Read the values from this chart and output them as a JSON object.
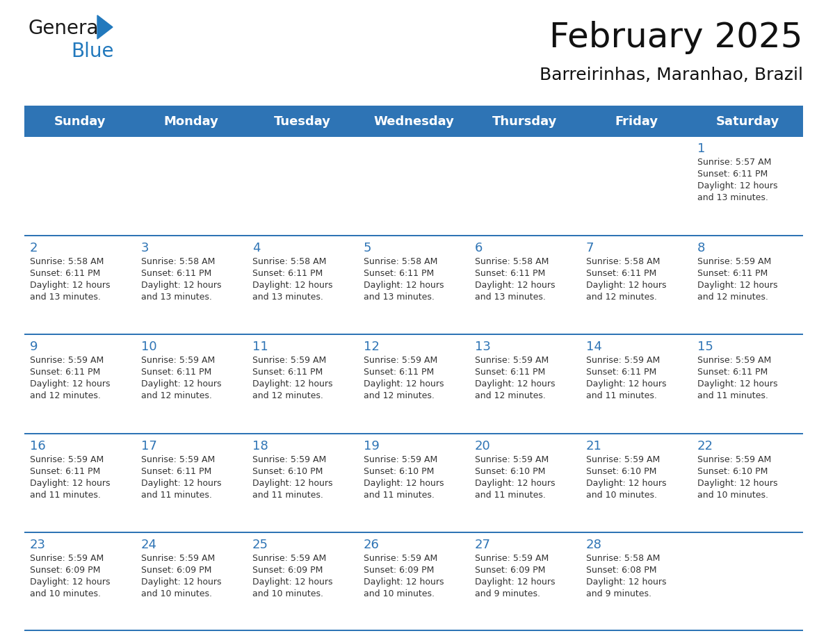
{
  "title": "February 2025",
  "subtitle": "Barreirinhas, Maranhao, Brazil",
  "header_bg_color": "#2E74B5",
  "header_text_color": "#FFFFFF",
  "cell_bg_color": "#FFFFFF",
  "row1_bg_color": "#F2F2F2",
  "divider_color": "#2E74B5",
  "day_num_color": "#2E74B5",
  "cell_text_color": "#333333",
  "days_of_week": [
    "Sunday",
    "Monday",
    "Tuesday",
    "Wednesday",
    "Thursday",
    "Friday",
    "Saturday"
  ],
  "weeks": [
    [
      {
        "day": "",
        "sunrise": "",
        "sunset": "",
        "daylight": ""
      },
      {
        "day": "",
        "sunrise": "",
        "sunset": "",
        "daylight": ""
      },
      {
        "day": "",
        "sunrise": "",
        "sunset": "",
        "daylight": ""
      },
      {
        "day": "",
        "sunrise": "",
        "sunset": "",
        "daylight": ""
      },
      {
        "day": "",
        "sunrise": "",
        "sunset": "",
        "daylight": ""
      },
      {
        "day": "",
        "sunrise": "",
        "sunset": "",
        "daylight": ""
      },
      {
        "day": "1",
        "sunrise": "5:57 AM",
        "sunset": "6:11 PM",
        "daylight": "12 hours\nand 13 minutes."
      }
    ],
    [
      {
        "day": "2",
        "sunrise": "5:58 AM",
        "sunset": "6:11 PM",
        "daylight": "12 hours\nand 13 minutes."
      },
      {
        "day": "3",
        "sunrise": "5:58 AM",
        "sunset": "6:11 PM",
        "daylight": "12 hours\nand 13 minutes."
      },
      {
        "day": "4",
        "sunrise": "5:58 AM",
        "sunset": "6:11 PM",
        "daylight": "12 hours\nand 13 minutes."
      },
      {
        "day": "5",
        "sunrise": "5:58 AM",
        "sunset": "6:11 PM",
        "daylight": "12 hours\nand 13 minutes."
      },
      {
        "day": "6",
        "sunrise": "5:58 AM",
        "sunset": "6:11 PM",
        "daylight": "12 hours\nand 13 minutes."
      },
      {
        "day": "7",
        "sunrise": "5:58 AM",
        "sunset": "6:11 PM",
        "daylight": "12 hours\nand 12 minutes."
      },
      {
        "day": "8",
        "sunrise": "5:59 AM",
        "sunset": "6:11 PM",
        "daylight": "12 hours\nand 12 minutes."
      }
    ],
    [
      {
        "day": "9",
        "sunrise": "5:59 AM",
        "sunset": "6:11 PM",
        "daylight": "12 hours\nand 12 minutes."
      },
      {
        "day": "10",
        "sunrise": "5:59 AM",
        "sunset": "6:11 PM",
        "daylight": "12 hours\nand 12 minutes."
      },
      {
        "day": "11",
        "sunrise": "5:59 AM",
        "sunset": "6:11 PM",
        "daylight": "12 hours\nand 12 minutes."
      },
      {
        "day": "12",
        "sunrise": "5:59 AM",
        "sunset": "6:11 PM",
        "daylight": "12 hours\nand 12 minutes."
      },
      {
        "day": "13",
        "sunrise": "5:59 AM",
        "sunset": "6:11 PM",
        "daylight": "12 hours\nand 12 minutes."
      },
      {
        "day": "14",
        "sunrise": "5:59 AM",
        "sunset": "6:11 PM",
        "daylight": "12 hours\nand 11 minutes."
      },
      {
        "day": "15",
        "sunrise": "5:59 AM",
        "sunset": "6:11 PM",
        "daylight": "12 hours\nand 11 minutes."
      }
    ],
    [
      {
        "day": "16",
        "sunrise": "5:59 AM",
        "sunset": "6:11 PM",
        "daylight": "12 hours\nand 11 minutes."
      },
      {
        "day": "17",
        "sunrise": "5:59 AM",
        "sunset": "6:11 PM",
        "daylight": "12 hours\nand 11 minutes."
      },
      {
        "day": "18",
        "sunrise": "5:59 AM",
        "sunset": "6:10 PM",
        "daylight": "12 hours\nand 11 minutes."
      },
      {
        "day": "19",
        "sunrise": "5:59 AM",
        "sunset": "6:10 PM",
        "daylight": "12 hours\nand 11 minutes."
      },
      {
        "day": "20",
        "sunrise": "5:59 AM",
        "sunset": "6:10 PM",
        "daylight": "12 hours\nand 11 minutes."
      },
      {
        "day": "21",
        "sunrise": "5:59 AM",
        "sunset": "6:10 PM",
        "daylight": "12 hours\nand 10 minutes."
      },
      {
        "day": "22",
        "sunrise": "5:59 AM",
        "sunset": "6:10 PM",
        "daylight": "12 hours\nand 10 minutes."
      }
    ],
    [
      {
        "day": "23",
        "sunrise": "5:59 AM",
        "sunset": "6:09 PM",
        "daylight": "12 hours\nand 10 minutes."
      },
      {
        "day": "24",
        "sunrise": "5:59 AM",
        "sunset": "6:09 PM",
        "daylight": "12 hours\nand 10 minutes."
      },
      {
        "day": "25",
        "sunrise": "5:59 AM",
        "sunset": "6:09 PM",
        "daylight": "12 hours\nand 10 minutes."
      },
      {
        "day": "26",
        "sunrise": "5:59 AM",
        "sunset": "6:09 PM",
        "daylight": "12 hours\nand 10 minutes."
      },
      {
        "day": "27",
        "sunrise": "5:59 AM",
        "sunset": "6:09 PM",
        "daylight": "12 hours\nand 9 minutes."
      },
      {
        "day": "28",
        "sunrise": "5:58 AM",
        "sunset": "6:08 PM",
        "daylight": "12 hours\nand 9 minutes."
      },
      {
        "day": "",
        "sunrise": "",
        "sunset": "",
        "daylight": ""
      }
    ]
  ],
  "logo_color_general": "#1a1a1a",
  "logo_color_blue": "#2279BD",
  "logo_triangle_color": "#2279BD",
  "title_fontsize": 36,
  "subtitle_fontsize": 18,
  "dow_fontsize": 13,
  "day_num_fontsize": 13,
  "cell_fontsize": 9
}
